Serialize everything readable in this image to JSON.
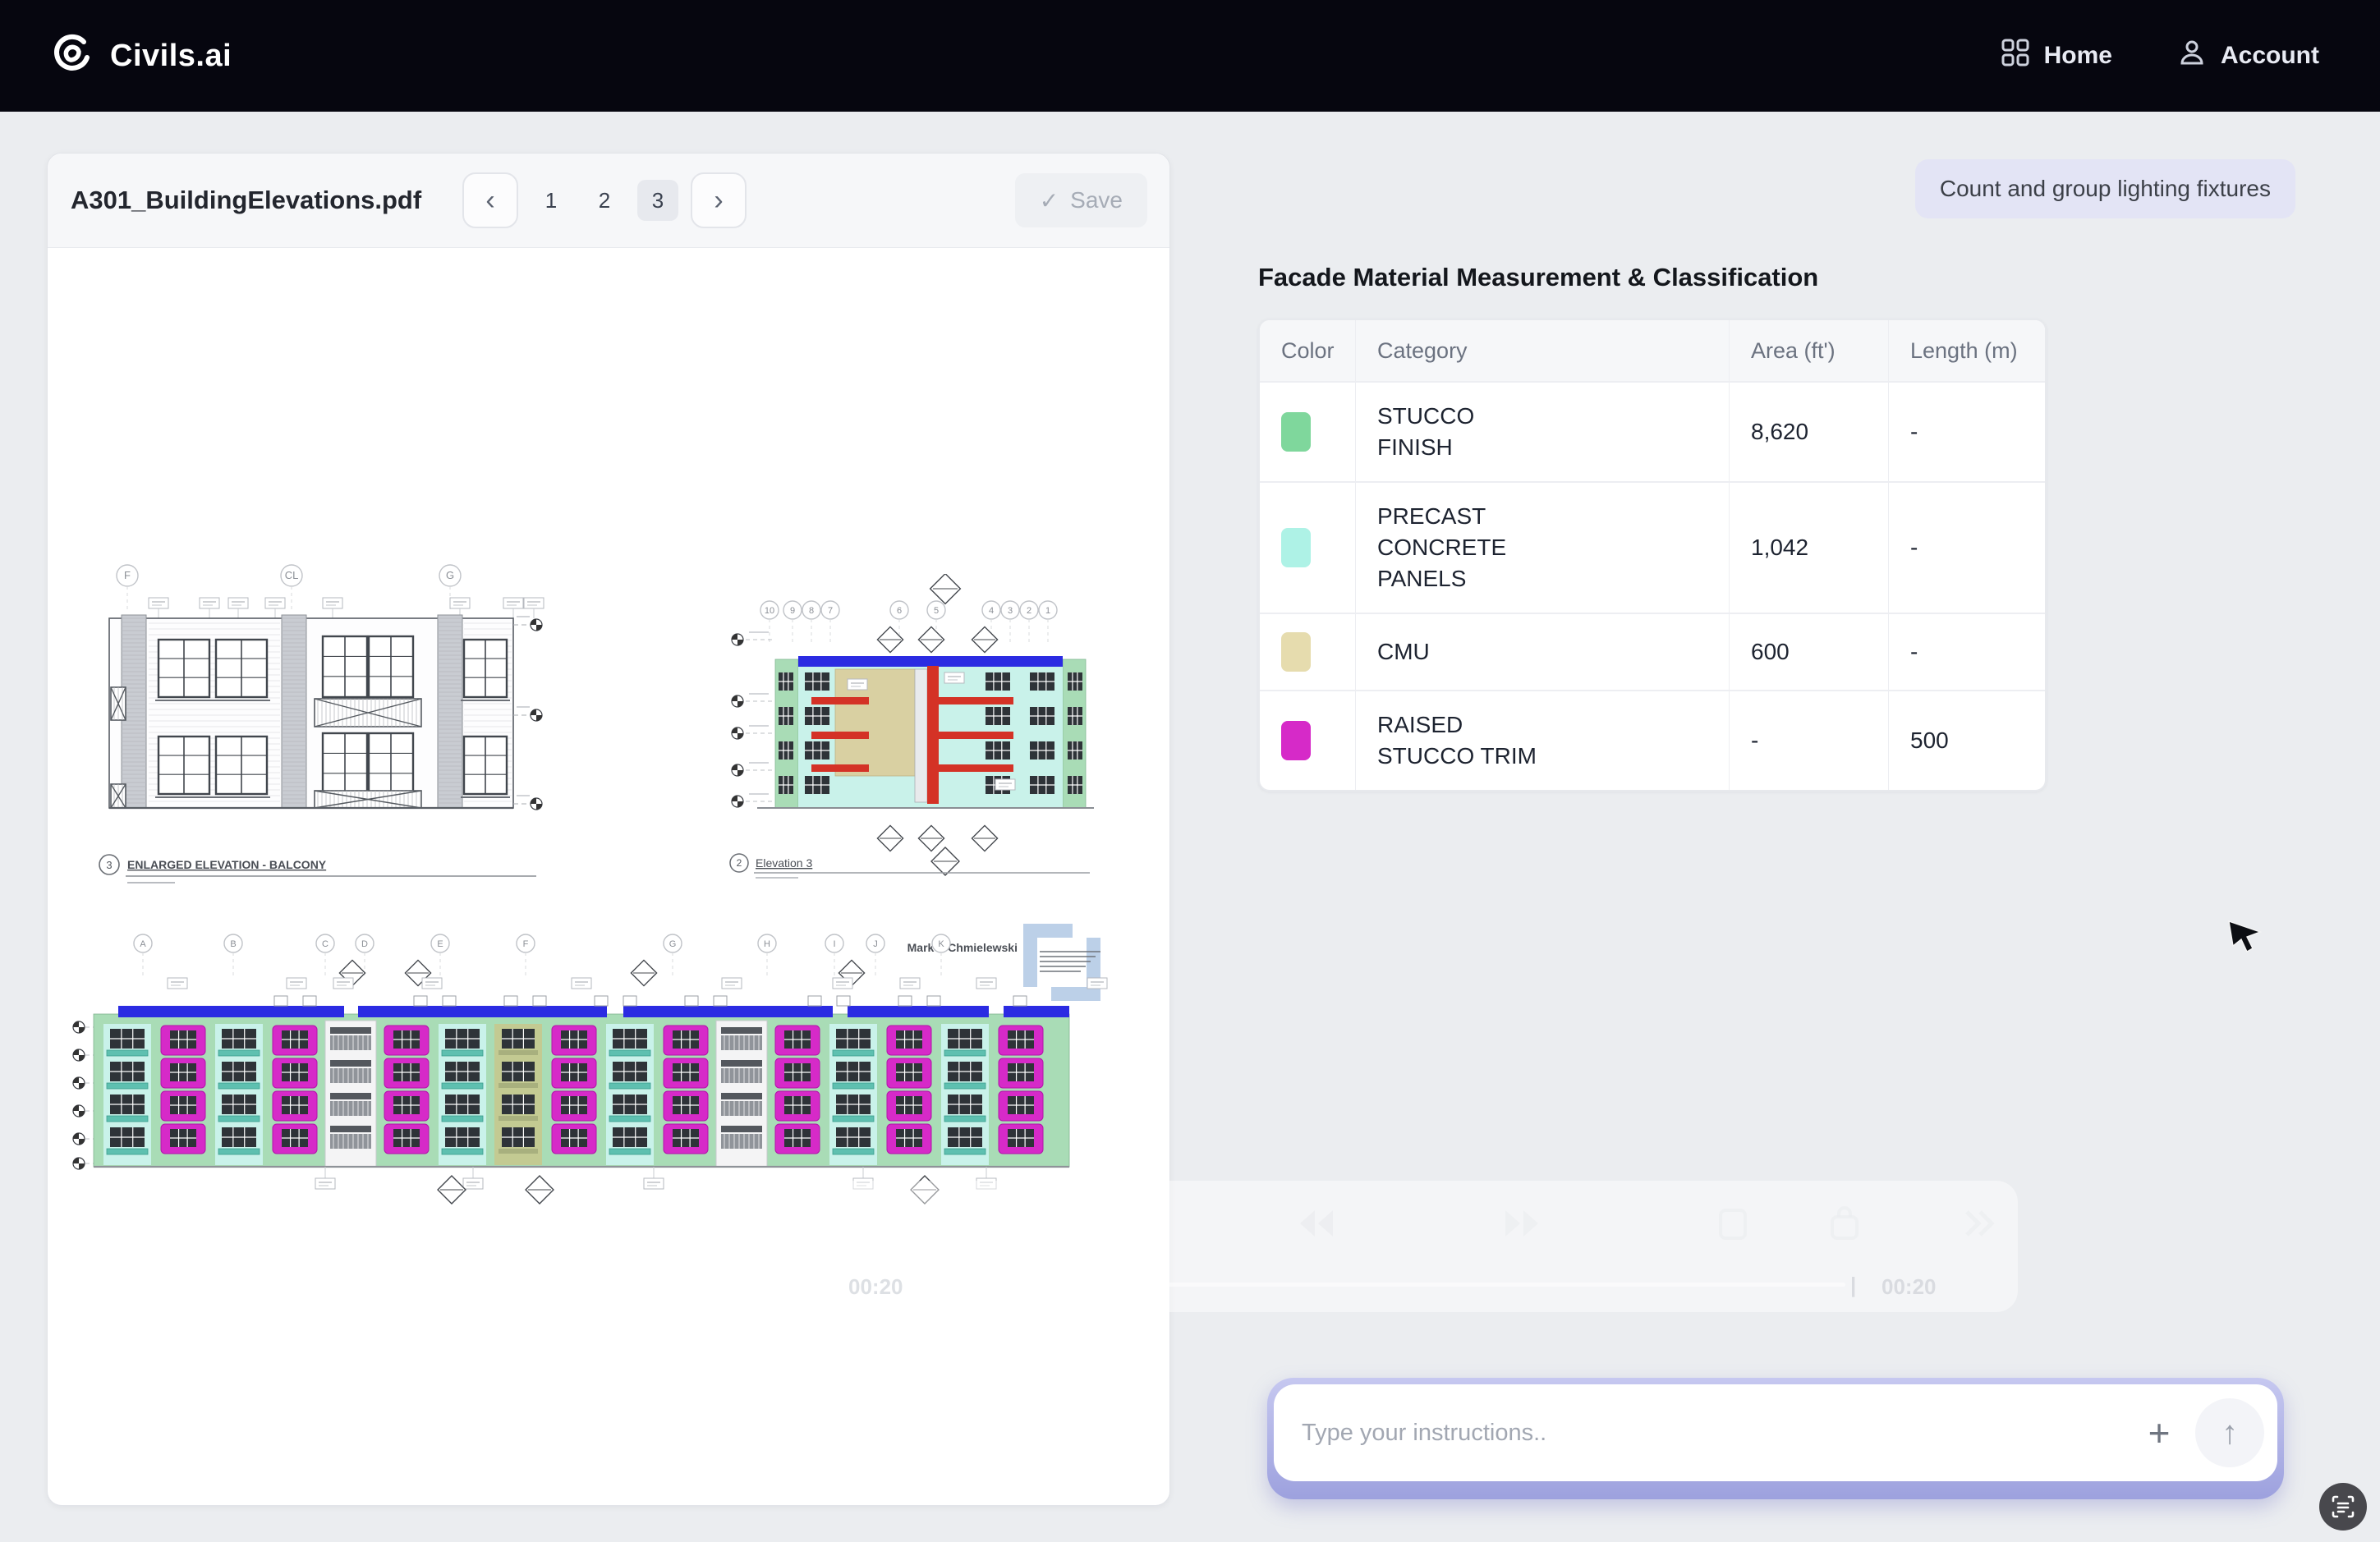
{
  "navbar": {
    "brand": "Civils.ai",
    "items": [
      {
        "label": "Home",
        "icon": "grid-icon"
      },
      {
        "label": "Account",
        "icon": "user-icon"
      }
    ]
  },
  "pdf_panel": {
    "filename": "A301_BuildingElevations.pdf",
    "pages": [
      "1",
      "2",
      "3"
    ],
    "active_page": "3",
    "save_label": "Save",
    "drawings": {
      "colors": {
        "stucco_green": "#a9dcb6",
        "precast_cyan": "#c9f2ea",
        "cmu_tan": "#c3ca92",
        "trim_magenta": "#d62ac8",
        "roof_blue": "#2b2be2",
        "accent_red": "#d43226",
        "stamp_blue": "#bcd0e8"
      },
      "elevation_balcony": {
        "num": "3",
        "caption": "ENLARGED ELEVATION - BALCONY",
        "grid": [
          "F",
          "CL",
          "G"
        ]
      },
      "elevation_3": {
        "num": "2",
        "caption": "Elevation 3",
        "grid": [
          "10",
          "9",
          "8",
          "7",
          "6",
          "5",
          "4",
          "3",
          "2",
          "1"
        ]
      },
      "elevation_long": {
        "grid": [
          "A",
          "B",
          "C",
          "D",
          "E",
          "F",
          "G",
          "H",
          "I",
          "J",
          "K"
        ],
        "stamp": "Mark A Chmielewski"
      }
    }
  },
  "panel": {
    "suggestion_chip": "Count and group lighting fixtures",
    "table_title": "Facade Material Measurement & Classification",
    "table": {
      "columns": [
        "Color",
        "Category",
        "Area (ft')",
        "Length (m)"
      ],
      "rows": [
        {
          "color": "#7fd79c",
          "category": "STUCCO\nFINISH",
          "area": "8,620",
          "length": "-"
        },
        {
          "color": "#aef2e6",
          "category": "PRECAST\nCONCRETE\nPANELS",
          "area": "1,042",
          "length": "-"
        },
        {
          "color": "#e6dcae",
          "category": "CMU",
          "area": "600",
          "length": "-"
        },
        {
          "color": "#d62ac8",
          "category": "RAISED\nSTUCCO TRIM",
          "area": "-",
          "length": "500"
        }
      ]
    },
    "chat": {
      "placeholder": "Type your instructions.."
    },
    "player_overlay": {
      "elapsed": "00:20",
      "duration": "00:20"
    }
  }
}
